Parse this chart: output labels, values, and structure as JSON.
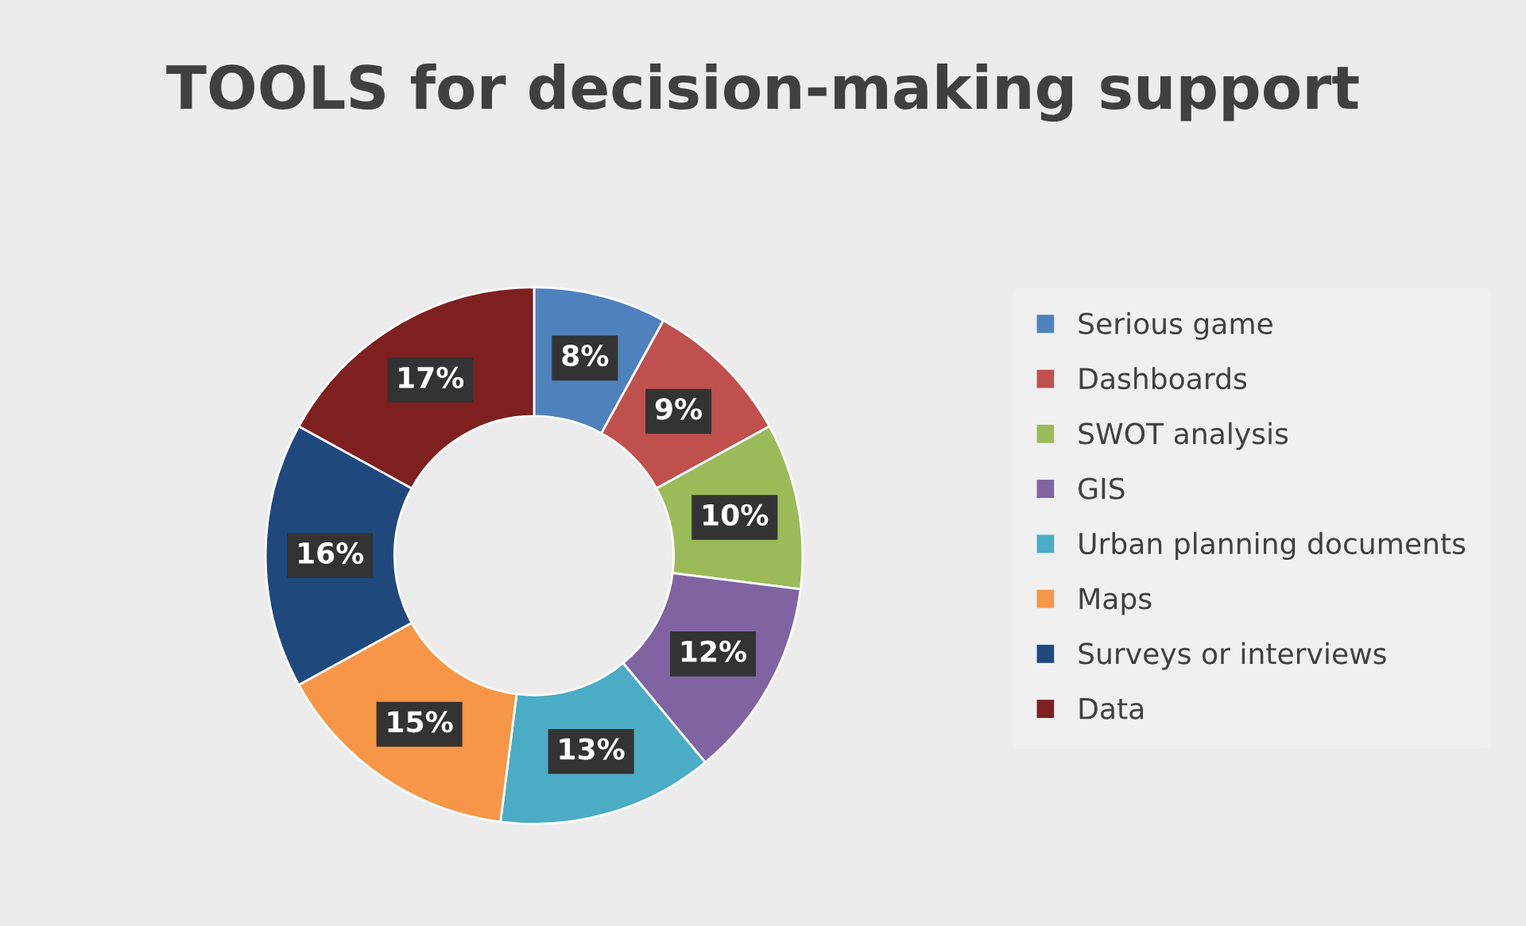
{
  "chart_data": {
    "type": "donut",
    "title": "TOOLS for decision-making support",
    "categories": [
      "Serious game",
      "Dashboards",
      "SWOT analysis",
      "GIS",
      "Urban planning documents",
      "Maps",
      "Surveys or interviews",
      "Data"
    ],
    "values": [
      8,
      9,
      10,
      12,
      13,
      15,
      16,
      17
    ],
    "value_labels": [
      "8%",
      "9%",
      "10%",
      "12%",
      "13%",
      "15%",
      "16%",
      "17%"
    ],
    "colors": [
      "#4f81bd",
      "#c0504d",
      "#9bbb59",
      "#8064a2",
      "#4bacc6",
      "#f79646",
      "#1f497d",
      "#7f2020"
    ],
    "legend": "right"
  }
}
